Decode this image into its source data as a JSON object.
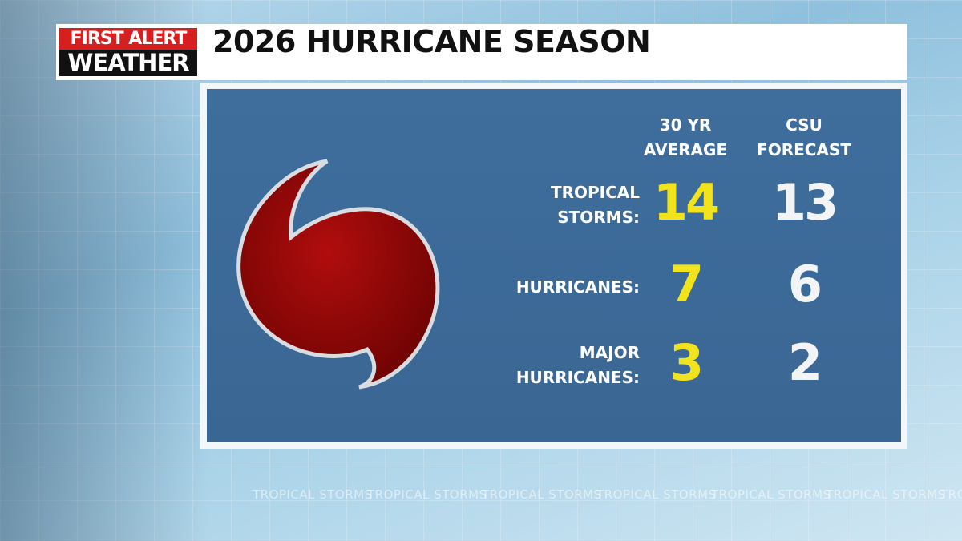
{
  "header": {
    "logo": [
      "FIRST ALERT",
      "WEATHER"
    ],
    "title": "2026 HURRICANE SEASON"
  },
  "table": {
    "columns": [
      [
        "30 YR",
        "AVERAGE"
      ],
      [
        "CSU",
        "FORECAST"
      ]
    ],
    "rows": [
      {
        "label": [
          "TROPICAL",
          "STORMS:"
        ],
        "values": [
          14,
          13
        ]
      },
      {
        "label": [
          "HURRICANES:"
        ],
        "values": [
          7,
          6
        ]
      },
      {
        "label": [
          "MAJOR",
          "HURRICANES:"
        ],
        "values": [
          3,
          2
        ]
      }
    ]
  },
  "ticker": "TROPICAL STORMS"
}
